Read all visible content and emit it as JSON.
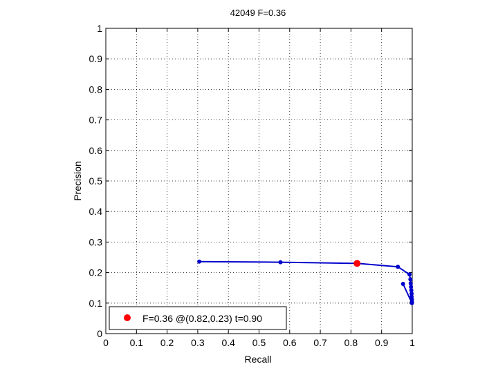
{
  "chart_data": {
    "type": "line",
    "title": "42049 F=0.36",
    "xlabel": "Recall",
    "ylabel": "Precision",
    "xlim": [
      0,
      1
    ],
    "ylim": [
      0,
      1
    ],
    "grid": true,
    "x_ticks": [
      "0",
      "0.1",
      "0.2",
      "0.3",
      "0.4",
      "0.5",
      "0.6",
      "0.7",
      "0.8",
      "0.9",
      "1"
    ],
    "y_ticks": [
      "0",
      "0.1",
      "0.2",
      "0.3",
      "0.4",
      "0.5",
      "0.6",
      "0.7",
      "0.8",
      "0.9",
      "1"
    ],
    "series": [
      {
        "color": "#0000cc",
        "points": [
          [
            0.305,
            0.236
          ],
          [
            0.57,
            0.234
          ],
          [
            0.82,
            0.23
          ],
          [
            0.953,
            0.219
          ],
          [
            0.991,
            0.194
          ],
          [
            0.994,
            0.178
          ],
          [
            0.995,
            0.165
          ],
          [
            0.996,
            0.153
          ],
          [
            0.997,
            0.142
          ],
          [
            0.998,
            0.131
          ],
          [
            0.998,
            0.121
          ],
          [
            0.999,
            0.112
          ],
          [
            0.999,
            0.104
          ],
          [
            0.999,
            0.1
          ],
          [
            0.97,
            0.163
          ]
        ]
      }
    ],
    "best_point": {
      "recall": 0.82,
      "precision": 0.23,
      "color": "#ff0000"
    },
    "legend": {
      "position": "bottom-left",
      "text": "F=0.36 @(0.82,0.23) t=0.90"
    }
  }
}
